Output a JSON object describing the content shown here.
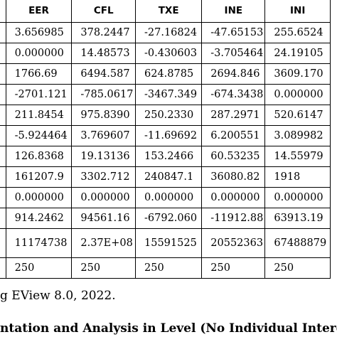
{
  "table": {
    "headers": [
      "",
      "EER",
      "CFL",
      "TXE",
      "INE",
      "INI"
    ],
    "rows": [
      [
        "",
        "3.656985",
        "378.2447",
        "-27.16824",
        "-47.65153",
        "255.6524"
      ],
      [
        "",
        "0.000000",
        "14.48573",
        "-0.430603",
        "-3.705464",
        "24.19105"
      ],
      [
        "",
        "1766.69",
        "6494.587",
        "624.8785",
        "2694.846",
        "3609.170"
      ],
      [
        "",
        "-2701.121",
        "-785.0617",
        "-3467.349",
        "-674.3438",
        "0.000000"
      ],
      [
        "",
        "211.8454",
        "975.8390",
        "250.2330",
        "287.2971",
        "520.6147"
      ],
      [
        "",
        "-5.924464",
        "3.769607",
        "-11.69692",
        "6.200551",
        "3.089982"
      ],
      [
        "",
        "126.8368",
        "19.13136",
        "153.2466",
        "60.53235",
        "14.55979"
      ],
      [
        "",
        "161207.9",
        "3302.712",
        "240847.1",
        "36080.82",
        "1918"
      ],
      [
        "",
        "0.000000",
        "0.000000",
        "0.000000",
        "0.000000",
        "0.000000"
      ],
      [
        "",
        "914.2462",
        "94561.16",
        "-6792.060",
        "-11912.88",
        "63913.19"
      ],
      [
        "",
        "11174738",
        "2.37E+08",
        "15591525",
        "20552363",
        "67488879"
      ],
      [
        "",
        "250",
        "250",
        "250",
        "250",
        "250"
      ]
    ]
  },
  "source_text": "g EView 8.0, 2022.",
  "caption_text": "ntation and Analysis in Level (No Individual Intercept and"
}
